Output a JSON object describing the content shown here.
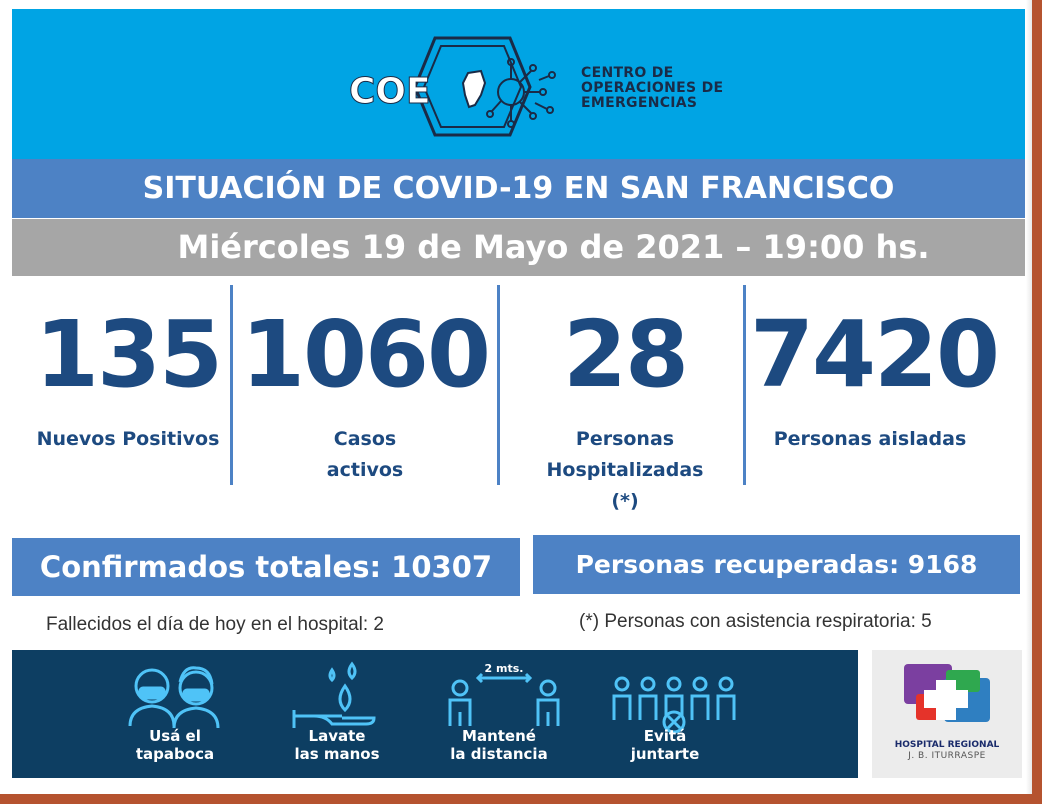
{
  "header": {
    "logo_mark": "COE",
    "logo_lines": [
      "CENTRO DE",
      "OPERACIONES DE",
      "EMERGENCIAS"
    ]
  },
  "title": "SITUACIÓN DE COVID-19 EN SAN FRANCISCO",
  "date": "Miércoles 19 de Mayo de 2021 – 19:00 hs.",
  "stats": [
    {
      "value": "135",
      "label_lines": [
        "Nuevos Positivos"
      ]
    },
    {
      "value": "1060",
      "label_lines": [
        "Casos",
        "activos"
      ]
    },
    {
      "value": "28",
      "label_lines": [
        "Personas",
        "Hospitalizadas",
        "(*)"
      ]
    },
    {
      "value": "7420",
      "label_lines": [
        "Personas aisladas"
      ]
    }
  ],
  "totals": {
    "confirmed": "Confirmados totales: 10307",
    "recovered": "Personas recuperadas: 9168"
  },
  "notes": {
    "deaths": "Fallecidos el día de hoy en el hospital: 2",
    "respiratory": "(*) Personas con asistencia respiratoria: 5"
  },
  "tips": [
    {
      "icon": "mask-people-icon",
      "lines": [
        "Usá el",
        "tapaboca"
      ]
    },
    {
      "icon": "wash-hands-icon",
      "lines": [
        "Lavate",
        "las manos"
      ]
    },
    {
      "icon": "distance-icon",
      "lines": [
        "Mantené",
        "la distancia"
      ],
      "badge": "2 mts."
    },
    {
      "icon": "no-gathering-icon",
      "lines": [
        "Evitá",
        "juntarte"
      ]
    }
  ],
  "hospital": {
    "name": "HOSPITAL REGIONAL",
    "subname": "J. B. ITURRASPE"
  },
  "colors": {
    "header_bg": "#00a4e4",
    "accent_blue": "#4d82c5",
    "gray_bar": "#a6a6a6",
    "number_blue": "#1d4a80",
    "navy_band": "#0d3e62",
    "tip_icon": "#4fc3f7"
  }
}
